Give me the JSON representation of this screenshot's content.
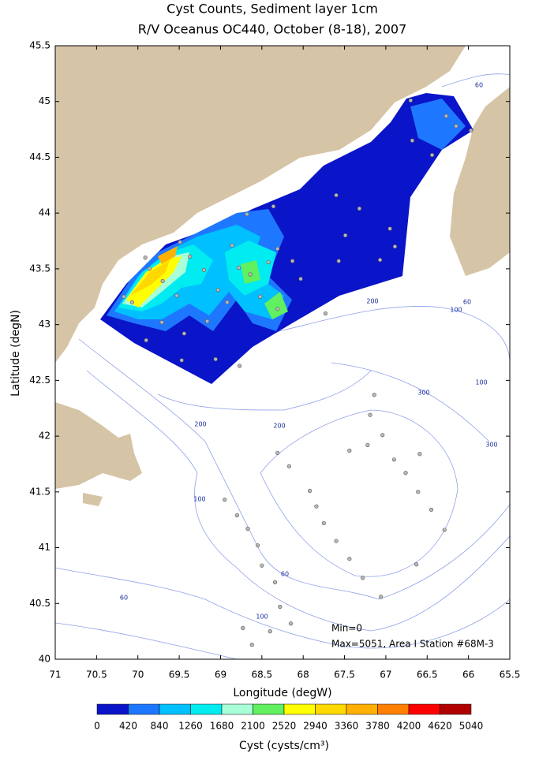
{
  "title": "Cyst Counts, Sediment layer 1cm",
  "subtitle": "R/V Oceanus OC440, October (8-18), 2007",
  "map": {
    "xlabel": "Longitude (degW)",
    "ylabel": "Latitude (degN)",
    "xlim": [
      71,
      65.5
    ],
    "ylim": [
      40,
      45.5
    ],
    "xticks": [
      71,
      70.5,
      70,
      69.5,
      69,
      68.5,
      68,
      67.5,
      67,
      66.5,
      66,
      65.5
    ],
    "yticks": [
      40,
      40.5,
      41,
      41.5,
      42,
      42.5,
      43,
      43.5,
      44,
      44.5,
      45,
      45.5
    ],
    "stations": {
      "lon": [
        67.14,
        67.19,
        67.04,
        67.22,
        66.9,
        66.59,
        67.44,
        68.31,
        68.17,
        67.92,
        67.84,
        67.75,
        67.6,
        67.44,
        67.28,
        67.06,
        66.63,
        66.29,
        66.45,
        66.61,
        66.76,
        68.95,
        68.8,
        68.67,
        68.55,
        68.5,
        68.34,
        68.28,
        68.15,
        68.4,
        68.62,
        68.73,
        70.17,
        70.07,
        69.86,
        69.91,
        69.7,
        69.53,
        69.49,
        69.37,
        69.2,
        69.71,
        69.44,
        69.16,
        68.92,
        69.03,
        68.78,
        68.86,
        68.64,
        68.52,
        68.31,
        68.42,
        68.31,
        68.68,
        68.36,
        68.13,
        68.03,
        67.73,
        67.57,
        67.49,
        67.6,
        67.32,
        67.07,
        66.95,
        66.89,
        66.68,
        66.44,
        66.27,
        66.15,
        65.97,
        66.7,
        68.77,
        69.47,
        69.9,
        69.06
      ],
      "lat": [
        42.37,
        42.19,
        42.01,
        41.92,
        41.79,
        41.84,
        41.87,
        41.85,
        41.73,
        41.51,
        41.37,
        41.22,
        41.06,
        40.9,
        40.73,
        40.56,
        40.85,
        41.16,
        41.34,
        41.5,
        41.67,
        41.43,
        41.29,
        41.17,
        41.02,
        40.84,
        40.69,
        40.47,
        40.32,
        40.25,
        40.13,
        40.28,
        43.25,
        43.2,
        43.5,
        43.6,
        43.39,
        43.26,
        43.74,
        43.61,
        43.49,
        43.02,
        42.92,
        43.03,
        43.2,
        43.31,
        43.51,
        43.71,
        43.45,
        43.25,
        43.14,
        43.56,
        43.68,
        43.99,
        44.06,
        43.57,
        43.41,
        43.1,
        43.57,
        43.8,
        44.16,
        44.04,
        43.58,
        43.86,
        43.7,
        44.65,
        44.52,
        44.87,
        44.78,
        44.74,
        45.01,
        42.63,
        42.68,
        42.86,
        42.69
      ]
    },
    "contour_labels": [
      60,
      200,
      60,
      100,
      100,
      300,
      200,
      200,
      300,
      100,
      60,
      60,
      100
    ],
    "annotations": [
      "Min=0",
      "Max=5051, Area I Station #68M-3"
    ]
  },
  "colorbar": {
    "ticks": [
      0,
      420,
      840,
      1260,
      1680,
      2100,
      2520,
      2940,
      3360,
      3780,
      4200,
      4620,
      5040
    ],
    "colors": [
      "#0a14c8",
      "#1e78ff",
      "#00c0ff",
      "#00ecf0",
      "#a8ffd8",
      "#60f060",
      "#ffff00",
      "#ffd800",
      "#ffb000",
      "#ff8000",
      "#ff0000",
      "#b00000"
    ],
    "label": "Cyst (cysts/cm³)"
  }
}
